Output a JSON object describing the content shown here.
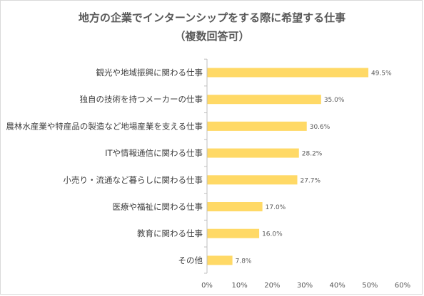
{
  "chart_data": {
    "type": "bar",
    "orientation": "horizontal",
    "title": "地方の企業でインターンシップをする際に希望する仕事",
    "subtitle": "（複数回答可）",
    "categories": [
      "観光や地域振興に関わる仕事",
      "独自の技術を持つメーカーの仕事",
      "農林水産業や特産品の製造など地場産業を支える仕事",
      "ITや情報通信に関わる仕事",
      "小売り・流通など暮らしに関わる仕事",
      "医療や福祉に関わる仕事",
      "教育に関わる仕事",
      "その他"
    ],
    "values": [
      49.5,
      35.0,
      30.6,
      28.2,
      27.7,
      17.0,
      16.0,
      7.8
    ],
    "value_labels": [
      "49.5%",
      "35.0%",
      "30.6%",
      "28.2%",
      "27.7%",
      "17.0%",
      "16.0%",
      "7.8%"
    ],
    "xlim": [
      0,
      60
    ],
    "x_ticks": [
      "0%",
      "10%",
      "20%",
      "30%",
      "40%",
      "50%",
      "60%"
    ],
    "bar_color": "#ffd966",
    "grid": false,
    "legend": "none"
  }
}
